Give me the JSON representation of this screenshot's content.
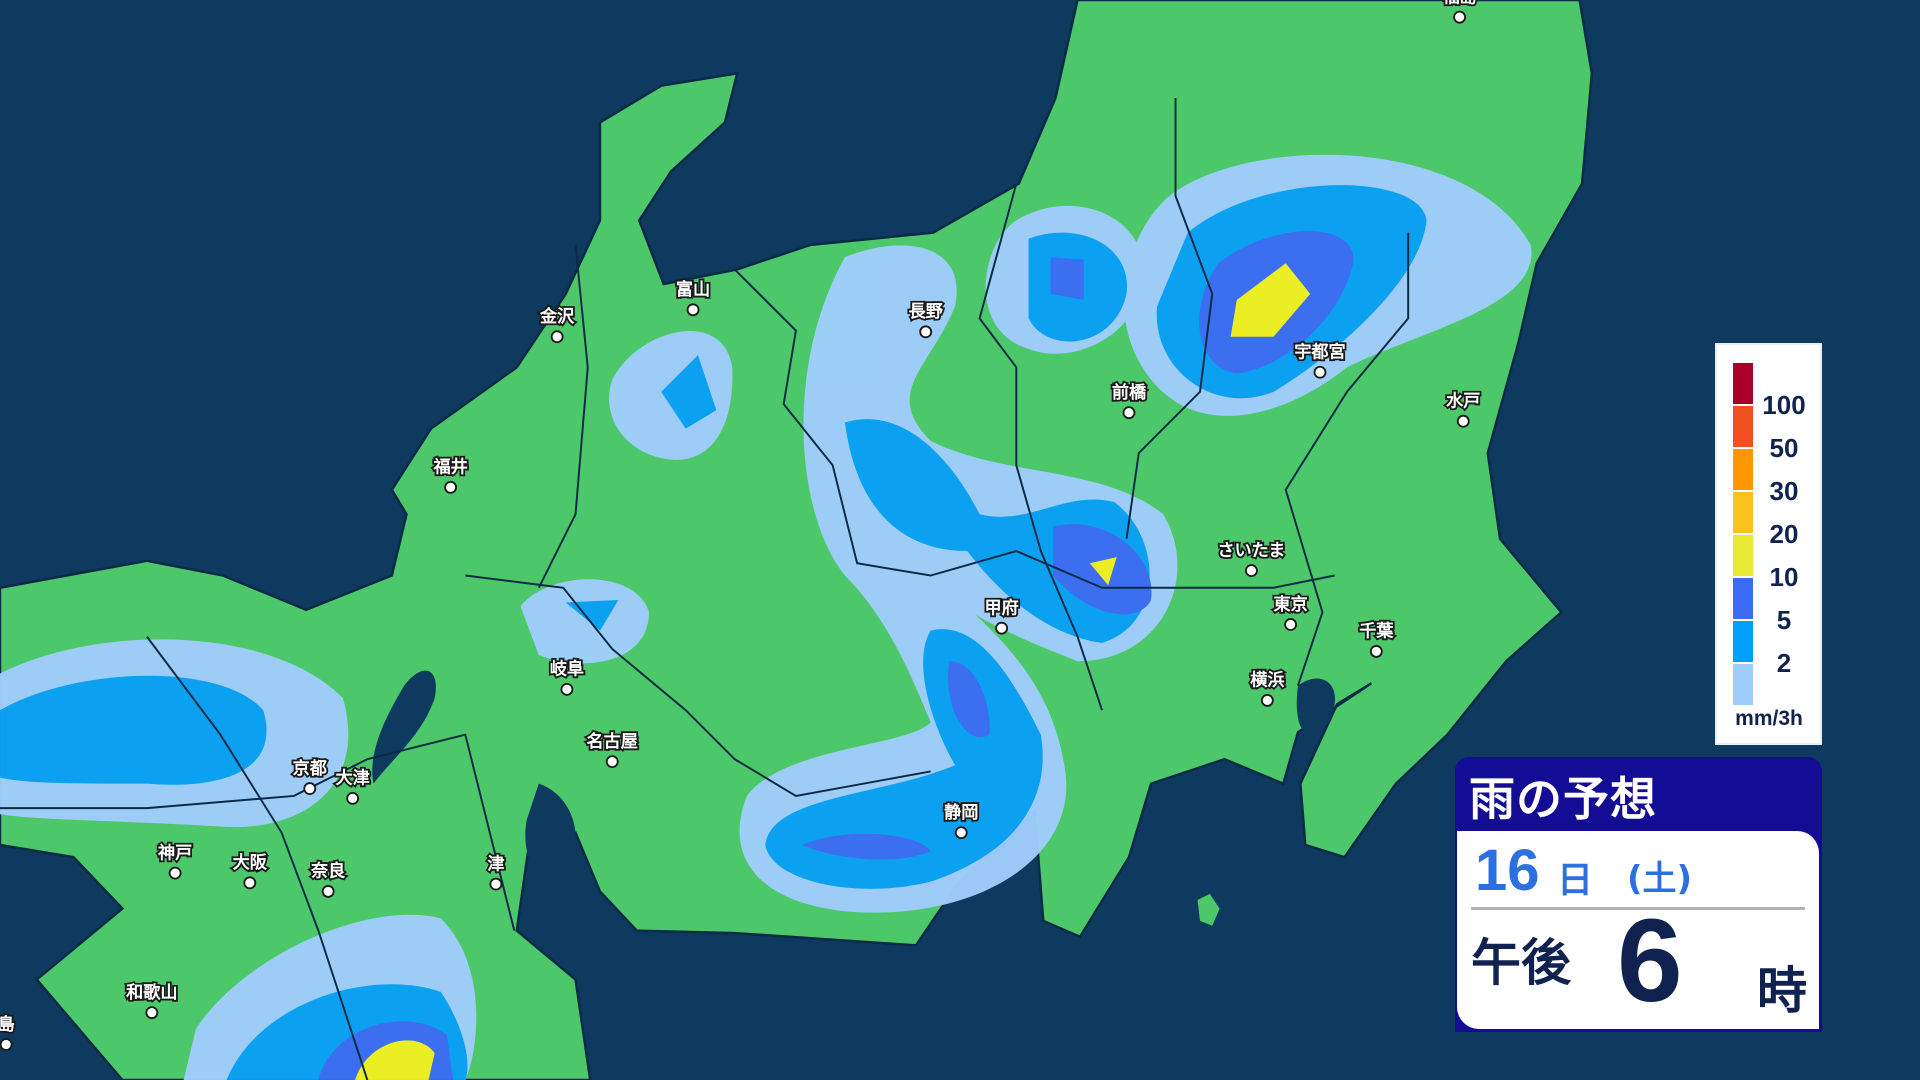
{
  "title": "雨の予想",
  "forecast": {
    "day": "16",
    "day_unit": "日",
    "weekday": "(土)",
    "ampm": "午後",
    "hour": "6",
    "hour_unit": "時"
  },
  "legend": {
    "unit": "mm/3h",
    "labels": [
      "100",
      "50",
      "30",
      "20",
      "10",
      "5",
      "2"
    ],
    "colors": [
      "#a8002a",
      "#f0501e",
      "#ff9800",
      "#fac21e",
      "#e8e836",
      "#3c6cf5",
      "#00a0ff",
      "#a0cdfb"
    ]
  },
  "colors": {
    "sea": "#0d3a5e",
    "land": "#4cc86a",
    "rain_light": "#a0cdfb",
    "rain_2": "#0aa0f5",
    "rain_5": "#3c6cf5",
    "rain_10": "#f0f020"
  },
  "cities": [
    {
      "name": "福島"
    },
    {
      "name": "金沢"
    },
    {
      "name": "富山"
    },
    {
      "name": "長野"
    },
    {
      "name": "前橋"
    },
    {
      "name": "宇都宮"
    },
    {
      "name": "水戸"
    },
    {
      "name": "福井"
    },
    {
      "name": "さいたま"
    },
    {
      "name": "甲府"
    },
    {
      "name": "東京"
    },
    {
      "name": "千葉"
    },
    {
      "name": "岐阜"
    },
    {
      "name": "横浜"
    },
    {
      "name": "名古屋"
    },
    {
      "name": "京都"
    },
    {
      "name": "大津"
    },
    {
      "name": "静岡"
    },
    {
      "name": "神戸"
    },
    {
      "name": "大阪"
    },
    {
      "name": "奈良"
    },
    {
      "name": "津"
    },
    {
      "name": "和歌山"
    },
    {
      "name": "島"
    }
  ]
}
